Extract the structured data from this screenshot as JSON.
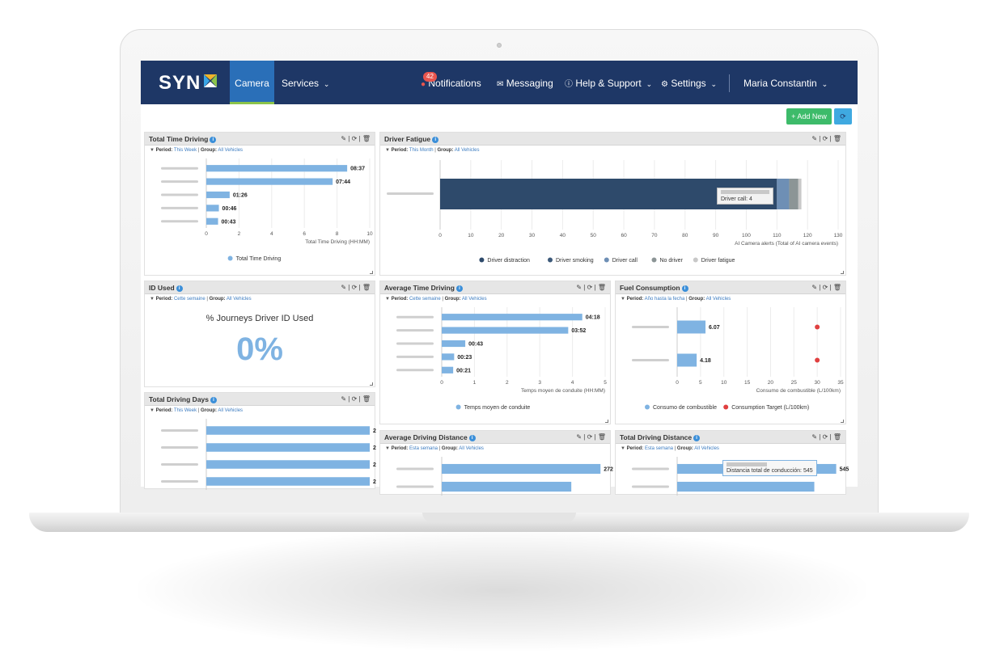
{
  "nav": {
    "logo": "SYN",
    "camera": "Camera",
    "services": "Services",
    "notifications": "Notifications",
    "notifications_count": "42",
    "messaging": "Messaging",
    "help": "Help & Support",
    "settings": "Settings",
    "user": "Maria Constantin"
  },
  "toolbar": {
    "add_new": "+ Add New"
  },
  "panels": {
    "total_time_driving": {
      "title": "Total Time Driving",
      "period_label": "Period:",
      "period": "This Week",
      "group_label": "Group:",
      "group": "All Vehicles"
    },
    "driver_fatigue": {
      "title": "Driver Fatigue",
      "period_label": "Period:",
      "period": "This Month",
      "group_label": "Group:",
      "group": "All Vehicles",
      "tooltip": "Driver call: 4"
    },
    "id_used": {
      "title": "ID Used",
      "period_label": "Period:",
      "period": "Cette semaine",
      "group_label": "Group:",
      "group": "All Vehicles",
      "metric_title": "% Journeys Driver ID Used",
      "metric_value": "0%"
    },
    "average_time_driving": {
      "title": "Average Time Driving",
      "period_label": "Period:",
      "period": "Cette semaine",
      "group_label": "Group:",
      "group": "All Vehicles"
    },
    "fuel_consumption": {
      "title": "Fuel Consumption",
      "period_label": "Period:",
      "period": "Año hasta la fecha",
      "group_label": "Group:",
      "group": "All Vehicles"
    },
    "total_driving_days": {
      "title": "Total Driving Days",
      "period_label": "Period:",
      "period": "This Week",
      "group_label": "Group:",
      "group": "All Vehicles"
    },
    "average_driving_distance": {
      "title": "Average Driving Distance",
      "period_label": "Period:",
      "period": "Esta semana",
      "group_label": "Group:",
      "group": "All Vehicles"
    },
    "total_driving_distance": {
      "title": "Total Driving Distance",
      "period_label": "Period:",
      "period": "Esta semana",
      "group_label": "Group:",
      "group": "All Vehicles",
      "tooltip": "Distancia total de conducción: 545"
    }
  },
  "colors": {
    "nav": "#1e3766",
    "bar": "#7fb3e2",
    "accent": "#2a6fb8",
    "add": "#3dbb6a",
    "red": "#e04040"
  },
  "chart_data": [
    {
      "id": "total_time_driving",
      "type": "bar",
      "values": [
        8.62,
        7.73,
        1.43,
        0.77,
        0.72
      ],
      "labels": [
        "08:37",
        "07:44",
        "01:26",
        "00:46",
        "00:43"
      ],
      "xlim": [
        0,
        10
      ],
      "xticks": [
        0,
        2,
        4,
        6,
        8,
        10
      ],
      "xlabel": "Total Time Driving (HH:MM)",
      "series": [
        {
          "name": "Total Time Driving",
          "color": "#7fb3e2"
        }
      ]
    },
    {
      "id": "driver_fatigue",
      "type": "bar",
      "stacked": [
        {
          "name": "Driver distraction",
          "value": 110,
          "color": "#2e4a6b"
        },
        {
          "name": "Driver smoking",
          "value": 0,
          "color": "#3d5a7a"
        },
        {
          "name": "Driver call",
          "value": 4,
          "color": "#6e8fb5"
        },
        {
          "name": "No driver",
          "value": 3,
          "color": "#8c9596"
        },
        {
          "name": "Driver fatigue",
          "value": 1,
          "color": "#c8c8c8"
        }
      ],
      "xlim": [
        0,
        130
      ],
      "xticks": [
        0,
        10,
        20,
        30,
        40,
        50,
        60,
        70,
        80,
        90,
        100,
        110,
        120,
        130
      ],
      "xlabel": "AI Camera alerts (Total of AI camera events)"
    },
    {
      "id": "average_time_driving",
      "type": "bar",
      "values": [
        4.3,
        3.87,
        0.72,
        0.38,
        0.35
      ],
      "labels": [
        "04:18",
        "03:52",
        "00:43",
        "00:23",
        "00:21"
      ],
      "xlim": [
        0,
        5
      ],
      "xticks": [
        0,
        1,
        2,
        3,
        4,
        5
      ],
      "xlabel": "Temps moyen de conduite (HH:MM)",
      "series": [
        {
          "name": "Temps moyen de conduite",
          "color": "#7fb3e2"
        }
      ]
    },
    {
      "id": "fuel_consumption",
      "type": "bar",
      "values": [
        6.07,
        4.18
      ],
      "labels": [
        "6.07",
        "4.18"
      ],
      "targets": [
        30,
        30
      ],
      "xlim": [
        0,
        35
      ],
      "xticks": [
        0,
        5,
        10,
        15,
        20,
        25,
        30,
        35
      ],
      "xlabel": "Consumo de combustible (L/100km)",
      "series": [
        {
          "name": "Consumo de combustible",
          "color": "#7fb3e2"
        },
        {
          "name": "Consumption Target (L/100km)",
          "color": "#e04040"
        }
      ]
    },
    {
      "id": "total_driving_days",
      "type": "bar",
      "values": [
        2,
        2,
        2,
        2
      ],
      "labels": [
        "2",
        "2",
        "2",
        "2"
      ],
      "xlim": [
        0,
        2
      ]
    },
    {
      "id": "average_driving_distance",
      "type": "bar",
      "values": [
        272,
        222
      ],
      "labels": [
        "272",
        ""
      ],
      "xlim": [
        0,
        280
      ]
    },
    {
      "id": "total_driving_distance",
      "type": "bar",
      "values": [
        545,
        470
      ],
      "labels": [
        "545",
        ""
      ],
      "xlim": [
        0,
        560
      ]
    }
  ]
}
